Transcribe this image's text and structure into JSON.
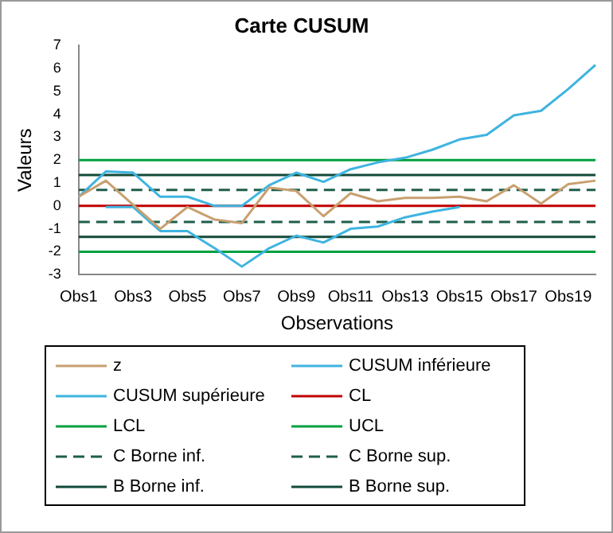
{
  "chart_data": {
    "type": "line",
    "title": "Carte CUSUM",
    "xlabel": "Observations",
    "ylabel": "Valeurs",
    "categories": [
      "Obs1",
      null,
      "Obs3",
      null,
      "Obs5",
      null,
      "Obs7",
      null,
      "Obs9",
      null,
      "Obs11",
      null,
      "Obs13",
      null,
      "Obs15",
      null,
      "Obs17",
      null,
      "Obs19",
      null
    ],
    "ylim": [
      -3,
      7
    ],
    "yticks": [
      -3,
      -2,
      -1,
      0,
      1,
      2,
      3,
      4,
      5,
      6,
      7
    ],
    "grid": false,
    "legend": "bottom",
    "marker": "none",
    "series": [
      {
        "name": "z",
        "color": "#c8a070",
        "values": [
          0.4,
          1.1,
          0.05,
          -1.0,
          -0.05,
          -0.6,
          -0.75,
          0.8,
          0.65,
          -0.45,
          0.55,
          0.2,
          0.35,
          0.35,
          0.4,
          0.2,
          0.9,
          0.1,
          0.95,
          1.1
        ]
      },
      {
        "name": "CUSUM inférieure",
        "color": "#3fb4e0",
        "values": [
          null,
          -0.05,
          -0.05,
          -1.1,
          -1.1,
          -1.85,
          -2.65,
          -1.85,
          -1.3,
          -1.6,
          -1.0,
          -0.9,
          -0.5,
          -0.25,
          -0.05,
          null,
          null,
          null,
          null,
          null
        ]
      },
      {
        "name": "CUSUM supérieure",
        "color": "#3fb4e0",
        "values": [
          0.4,
          1.5,
          1.45,
          0.4,
          0.4,
          0,
          0,
          0.9,
          1.45,
          1.05,
          1.6,
          1.9,
          2.1,
          2.45,
          2.9,
          3.1,
          3.95,
          4.15,
          5.1,
          6.15
        ]
      },
      {
        "name": "CL",
        "color": "#c00000",
        "values": [
          0,
          0,
          0,
          0,
          0,
          0,
          0,
          0,
          0,
          0,
          0,
          0,
          0,
          0,
          0,
          0,
          0,
          0,
          0,
          0
        ]
      },
      {
        "name": "LCL",
        "color": "#00a040",
        "values": [
          -2,
          -2,
          -2,
          -2,
          -2,
          -2,
          -2,
          -2,
          -2,
          -2,
          -2,
          -2,
          -2,
          -2,
          -2,
          -2,
          -2,
          -2,
          -2,
          -2
        ]
      },
      {
        "name": "UCL",
        "color": "#00a040",
        "values": [
          2,
          2,
          2,
          2,
          2,
          2,
          2,
          2,
          2,
          2,
          2,
          2,
          2,
          2,
          2,
          2,
          2,
          2,
          2,
          2
        ]
      },
      {
        "name": "C Borne inf.",
        "color": "#1e5e4c",
        "line_style": "dashed",
        "values": [
          -0.7,
          -0.7,
          -0.7,
          -0.7,
          -0.7,
          -0.7,
          -0.7,
          -0.7,
          -0.7,
          -0.7,
          -0.7,
          -0.7,
          -0.7,
          -0.7,
          -0.7,
          -0.7,
          -0.7,
          -0.7,
          -0.7,
          -0.7
        ]
      },
      {
        "name": "C Borne sup.",
        "color": "#1e5e4c",
        "line_style": "dashed",
        "values": [
          0.7,
          0.7,
          0.7,
          0.7,
          0.7,
          0.7,
          0.7,
          0.7,
          0.7,
          0.7,
          0.7,
          0.7,
          0.7,
          0.7,
          0.7,
          0.7,
          0.7,
          0.7,
          0.7,
          0.7
        ]
      },
      {
        "name": "B Borne inf.",
        "color": "#124a3a",
        "values": [
          -1.35,
          -1.35,
          -1.35,
          -1.35,
          -1.35,
          -1.35,
          -1.35,
          -1.35,
          -1.35,
          -1.35,
          -1.35,
          -1.35,
          -1.35,
          -1.35,
          -1.35,
          -1.35,
          -1.35,
          -1.35,
          -1.35,
          -1.35
        ]
      },
      {
        "name": "B Borne sup.",
        "color": "#124a3a",
        "values": [
          1.35,
          1.35,
          1.35,
          1.35,
          1.35,
          1.35,
          1.35,
          1.35,
          1.35,
          1.35,
          1.35,
          1.35,
          1.35,
          1.35,
          1.35,
          1.35,
          1.35,
          1.35,
          1.35,
          1.35
        ]
      }
    ]
  }
}
